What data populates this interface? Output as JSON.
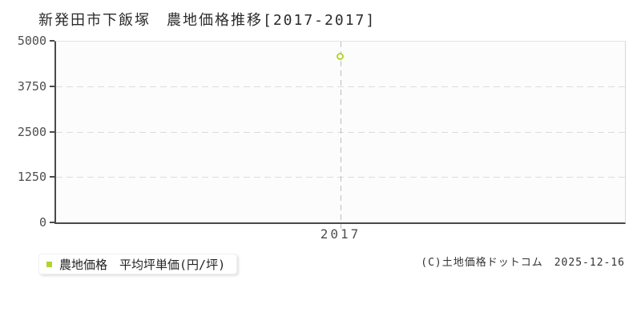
{
  "page": {
    "title": "新発田市下飯塚　農地価格推移[2017-2017]"
  },
  "chart_data": {
    "type": "scatter",
    "title": "新発田市下飯塚　農地価格推移[2017-2017]",
    "categories": [
      "2017"
    ],
    "series": [
      {
        "name": "農地価格 平均坪単価(円/坪)",
        "values": [
          4560
        ],
        "color": "#b2d430",
        "marker": "open-circle"
      }
    ],
    "xlabel": "",
    "ylabel": "",
    "ylim": [
      0,
      5000
    ],
    "yticks": [
      0,
      1250,
      2500,
      3750,
      5000
    ],
    "grid": "horizontal-dashed",
    "x_guide": "vertical-dashed",
    "legend_position": "bottom-left",
    "colors": {
      "plot_background": "#fcfcfc",
      "axis": "#4a4a4a",
      "gridline": "#dcdcdc",
      "x_guide": "#bdbdbd",
      "accent": "#b2d430"
    }
  },
  "legend": {
    "marker_color": "#b2d430",
    "label": "農地価格　平均坪単価(円/坪)"
  },
  "footer": {
    "copyright": "(C)土地価格ドットコム　2025-12-16"
  }
}
